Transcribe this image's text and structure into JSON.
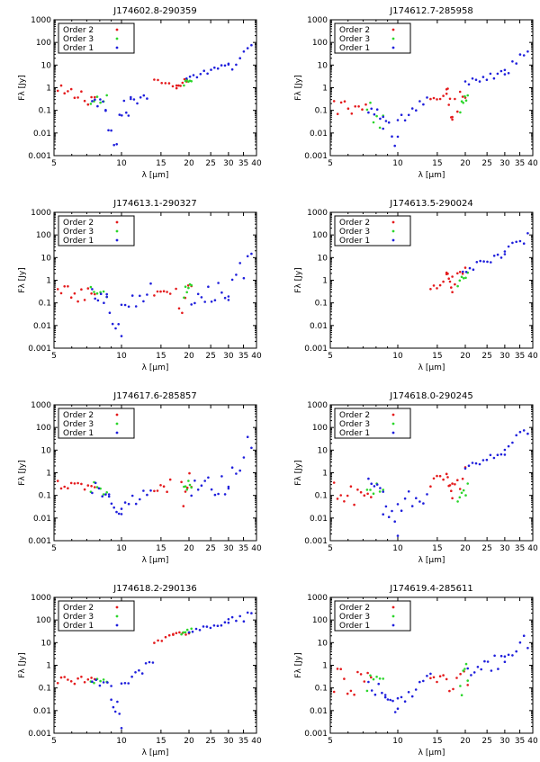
{
  "chart_data": [
    {
      "type": "scatter",
      "title": "J174602.8-290359",
      "xlabel": "λ [μm]",
      "ylabel": "Fλ [Jy]",
      "xscale": "log",
      "yscale": "log",
      "xlim": [
        5,
        40
      ],
      "ylim": [
        0.001,
        1000
      ],
      "xticks": [
        5,
        10,
        15,
        20,
        25,
        30,
        35,
        40
      ],
      "yticks": [
        0.001,
        0.01,
        0.1,
        1,
        10,
        100,
        1000
      ],
      "ytick_labels": [
        "0.001",
        "0.01",
        "0.1",
        "1",
        "10",
        "100",
        "1000"
      ],
      "legend": "top-left",
      "series": [
        {
          "name": "Order 2",
          "color": "#e41a1c",
          "segments": [
            [
              5.2,
              7.6,
              0.6,
              0.35,
              0.35
            ],
            [
              14.0,
              17.6,
              2.3,
              1.0,
              0.1
            ],
            [
              17.6,
              19.5,
              1.0,
              2.0,
              0.15
            ]
          ]
        },
        {
          "name": "Order 3",
          "color": "#2bd62b",
          "segments": [
            [
              7.3,
              8.6,
              0.35,
              0.25,
              0.3
            ],
            [
              19.0,
              20.5,
              1.6,
              2.4,
              0.15
            ]
          ]
        },
        {
          "name": "Order 1",
          "color": "#1f1fdc",
          "segments": [
            [
              7.4,
              8.5,
              0.4,
              0.15,
              0.3
            ],
            [
              8.5,
              9.8,
              0.15,
              0.002,
              0.7
            ],
            [
              9.8,
              11.0,
              0.05,
              0.2,
              0.5
            ],
            [
              11.0,
              13.0,
              0.25,
              0.45,
              0.2
            ],
            [
              19.5,
              30.0,
              2.5,
              10.0,
              0.1
            ],
            [
              30.0,
              38.0,
              10.0,
              40.0,
              0.3
            ]
          ]
        }
      ]
    },
    {
      "type": "scatter",
      "title": "J174612.7-285958",
      "xlabel": "λ [μm]",
      "ylabel": "Fλ [Jy]",
      "xscale": "log",
      "yscale": "log",
      "xlim": [
        5,
        40
      ],
      "ylim": [
        0.001,
        1000
      ],
      "xticks": [
        5,
        10,
        15,
        20,
        25,
        30,
        35,
        40
      ],
      "yticks": [
        0.001,
        0.01,
        0.1,
        1,
        10,
        100,
        1000
      ],
      "ytick_labels": [
        "0.001",
        "0.01",
        "0.1",
        "1",
        "10",
        "100",
        "1000"
      ],
      "legend": "top-left",
      "series": [
        {
          "name": "Order 2",
          "color": "#e41a1c",
          "segments": [
            [
              5.2,
              7.2,
              0.15,
              0.05,
              0.6
            ],
            [
              14.0,
              16.5,
              0.3,
              0.5,
              0.15
            ],
            [
              16.5,
              17.5,
              0.5,
              0.05,
              0.6
            ],
            [
              17.5,
              20.0,
              0.1,
              0.8,
              0.5
            ]
          ]
        },
        {
          "name": "Order 3",
          "color": "#2bd62b",
          "segments": [
            [
              7.3,
              8.6,
              0.1,
              0.03,
              0.5
            ],
            [
              19.0,
              20.5,
              0.15,
              0.6,
              0.4
            ]
          ]
        },
        {
          "name": "Order 1",
          "color": "#1f1fdc",
          "segments": [
            [
              7.4,
              8.6,
              0.1,
              0.03,
              0.5
            ],
            [
              8.6,
              10.0,
              0.02,
              0.002,
              0.6
            ],
            [
              10.0,
              13.5,
              0.02,
              0.2,
              0.5
            ],
            [
              20.0,
              30.0,
              1.5,
              5.0,
              0.15
            ],
            [
              30.0,
              38.0,
              5.0,
              30.0,
              0.3
            ]
          ]
        }
      ]
    },
    {
      "type": "scatter",
      "title": "J174613.1-290327",
      "xlabel": "λ [μm]",
      "ylabel": "Fλ [Jy]",
      "xscale": "log",
      "yscale": "log",
      "xlim": [
        5,
        40
      ],
      "ylim": [
        0.001,
        1000
      ],
      "xticks": [
        5,
        10,
        15,
        20,
        25,
        30,
        35,
        40
      ],
      "yticks": [
        0.001,
        0.01,
        0.1,
        1,
        10,
        100,
        1000
      ],
      "ytick_labels": [
        "0.001",
        "0.01",
        "0.1",
        "1",
        "10",
        "100",
        "1000"
      ],
      "legend": "top-left",
      "series": [
        {
          "name": "Order 2",
          "color": "#e41a1c",
          "segments": [
            [
              5.2,
              7.6,
              0.25,
              0.2,
              0.4
            ],
            [
              14.0,
              16.5,
              0.3,
              0.3,
              0.15
            ],
            [
              17.5,
              20.5,
              0.1,
              0.3,
              0.7
            ]
          ]
        },
        {
          "name": "Order 3",
          "color": "#2bd62b",
          "segments": [
            [
              7.3,
              8.6,
              0.35,
              0.2,
              0.3
            ],
            [
              19.0,
              20.5,
              0.2,
              0.3,
              0.4
            ]
          ]
        },
        {
          "name": "Order 1",
          "color": "#1f1fdc",
          "segments": [
            [
              7.4,
              8.6,
              0.35,
              0.15,
              0.3
            ],
            [
              8.6,
              10.0,
              0.1,
              0.005,
              0.5
            ],
            [
              10.0,
              13.5,
              0.05,
              0.3,
              0.4
            ],
            [
              20.5,
              30.0,
              0.2,
              0.4,
              0.5
            ],
            [
              30.0,
              38.0,
              0.5,
              10.0,
              0.5
            ]
          ]
        }
      ]
    },
    {
      "type": "scatter",
      "title": "J174613.5-290024",
      "xlabel": "λ [μm]",
      "ylabel": "Fλ [Jy]",
      "xscale": "log",
      "yscale": "log",
      "xlim": [
        5,
        40
      ],
      "ylim": [
        0.001,
        1000
      ],
      "xticks": [
        5,
        10,
        15,
        20,
        25,
        30,
        35,
        40
      ],
      "yticks": [
        0.001,
        0.01,
        0.1,
        1,
        10,
        100,
        1000
      ],
      "ytick_labels": [
        "0.001",
        "0.01",
        "0.1",
        "1",
        "10",
        "100",
        "1000"
      ],
      "legend": "top-left",
      "series": [
        {
          "name": "Order 2",
          "color": "#e41a1c",
          "segments": [
            [
              14.0,
              16.5,
              0.3,
              1.8,
              0.2
            ],
            [
              16.5,
              17.5,
              1.8,
              0.25,
              0.3
            ],
            [
              17.5,
              20.0,
              1.0,
              3.0,
              0.3
            ]
          ]
        },
        {
          "name": "Order 3",
          "color": "#2bd62b",
          "segments": [
            [
              18.5,
              20.5,
              0.6,
              2.0,
              0.3
            ]
          ]
        },
        {
          "name": "Order 1",
          "color": "#1f1fdc",
          "segments": [
            [
              19.5,
              30.0,
              2.5,
              15.0,
              0.15
            ],
            [
              30.0,
              38.0,
              15.0,
              80.0,
              0.3
            ]
          ]
        }
      ]
    },
    {
      "type": "scatter",
      "title": "J174617.6-285857",
      "xlabel": "λ [μm]",
      "ylabel": "Fλ [Jy]",
      "xscale": "log",
      "yscale": "log",
      "xlim": [
        5,
        40
      ],
      "ylim": [
        0.001,
        1000
      ],
      "xticks": [
        5,
        10,
        15,
        20,
        25,
        30,
        35,
        40
      ],
      "yticks": [
        0.001,
        0.01,
        0.1,
        1,
        10,
        100,
        1000
      ],
      "ytick_labels": [
        "0.001",
        "0.01",
        "0.1",
        "1",
        "10",
        "100",
        "1000"
      ],
      "legend": "top-left",
      "series": [
        {
          "name": "Order 2",
          "color": "#e41a1c",
          "segments": [
            [
              5.2,
              7.6,
              0.3,
              0.2,
              0.2
            ],
            [
              14.0,
              16.5,
              0.15,
              0.25,
              0.3
            ],
            [
              18.5,
              20.5,
              0.1,
              0.3,
              0.7
            ]
          ]
        },
        {
          "name": "Order 3",
          "color": "#2bd62b",
          "segments": [
            [
              7.3,
              8.6,
              0.25,
              0.15,
              0.3
            ],
            [
              19.0,
              20.5,
              0.1,
              0.3,
              0.5
            ]
          ]
        },
        {
          "name": "Order 1",
          "color": "#1f1fdc",
          "segments": [
            [
              7.4,
              8.8,
              0.25,
              0.1,
              0.3
            ],
            [
              8.8,
              10.0,
              0.08,
              0.02,
              0.3
            ],
            [
              10.0,
              13.5,
              0.03,
              0.2,
              0.3
            ],
            [
              20.5,
              30.0,
              0.2,
              0.3,
              0.6
            ],
            [
              30.0,
              38.0,
              0.5,
              20.0,
              0.6
            ]
          ]
        }
      ]
    },
    {
      "type": "scatter",
      "title": "J174618.0-290245",
      "xlabel": "λ [μm]",
      "ylabel": "Fλ [Jy]",
      "xscale": "log",
      "yscale": "log",
      "xlim": [
        5,
        40
      ],
      "ylim": [
        0.001,
        1000
      ],
      "xticks": [
        5,
        10,
        15,
        20,
        25,
        30,
        35,
        40
      ],
      "yticks": [
        0.001,
        0.01,
        0.1,
        1,
        10,
        100,
        1000
      ],
      "ytick_labels": [
        "0.001",
        "0.01",
        "0.1",
        "1",
        "10",
        "100",
        "1000"
      ],
      "legend": "top-left",
      "series": [
        {
          "name": "Order 2",
          "color": "#e41a1c",
          "segments": [
            [
              5.2,
              7.6,
              0.1,
              0.05,
              0.6
            ],
            [
              14.0,
              16.5,
              0.3,
              1.0,
              0.2
            ],
            [
              16.5,
              17.5,
              1.0,
              0.1,
              0.3
            ],
            [
              17.5,
              20.0,
              0.2,
              0.8,
              0.4
            ]
          ]
        },
        {
          "name": "Order 3",
          "color": "#2bd62b",
          "segments": [
            [
              7.3,
              8.6,
              0.3,
              0.15,
              0.3
            ],
            [
              18.5,
              20.5,
              0.1,
              0.3,
              0.5
            ]
          ]
        },
        {
          "name": "Order 1",
          "color": "#1f1fdc",
          "segments": [
            [
              7.4,
              8.6,
              0.3,
              0.1,
              0.3
            ],
            [
              8.6,
              10.0,
              0.03,
              0.005,
              0.5
            ],
            [
              10.0,
              13.5,
              0.05,
              0.15,
              0.5
            ],
            [
              20.0,
              30.0,
              1.5,
              10.0,
              0.15
            ],
            [
              30.0,
              38.0,
              10.0,
              70.0,
              0.3
            ]
          ]
        }
      ]
    },
    {
      "type": "scatter",
      "title": "J174618.2-290136",
      "xlabel": "λ [μm]",
      "ylabel": "Fλ [Jy]",
      "xscale": "log",
      "yscale": "log",
      "xlim": [
        5,
        40
      ],
      "ylim": [
        0.001,
        1000
      ],
      "xticks": [
        5,
        10,
        15,
        20,
        25,
        30,
        35,
        40
      ],
      "yticks": [
        0.001,
        0.01,
        0.1,
        1,
        10,
        100,
        1000
      ],
      "ytick_labels": [
        "0.001",
        "0.01",
        "0.1",
        "1",
        "10",
        "100",
        "1000"
      ],
      "legend": "top-left",
      "series": [
        {
          "name": "Order 2",
          "color": "#e41a1c",
          "segments": [
            [
              5.2,
              7.6,
              0.25,
              0.2,
              0.2
            ],
            [
              14.0,
              17.0,
              12.0,
              20.0,
              0.1
            ],
            [
              17.0,
              20.0,
              20.0,
              30.0,
              0.1
            ]
          ]
        },
        {
          "name": "Order 3",
          "color": "#2bd62b",
          "segments": [
            [
              7.3,
              8.6,
              0.2,
              0.2,
              0.2
            ],
            [
              18.5,
              20.5,
              25.0,
              35.0,
              0.1
            ]
          ]
        },
        {
          "name": "Order 1",
          "color": "#1f1fdc",
          "segments": [
            [
              7.4,
              9.0,
              0.2,
              0.12,
              0.2
            ],
            [
              9.0,
              10.0,
              0.05,
              0.003,
              0.5
            ],
            [
              10.0,
              13.8,
              0.1,
              1.5,
              0.2
            ],
            [
              20.0,
              30.0,
              30.0,
              80.0,
              0.1
            ],
            [
              30.0,
              38.0,
              80.0,
              150.0,
              0.2
            ]
          ]
        }
      ]
    },
    {
      "type": "scatter",
      "title": "J174619.4-285611",
      "xlabel": "λ [μm]",
      "ylabel": "Fλ [Jy]",
      "xscale": "log",
      "yscale": "log",
      "xlim": [
        5,
        40
      ],
      "ylim": [
        0.001,
        1000
      ],
      "xticks": [
        5,
        10,
        15,
        20,
        25,
        30,
        35,
        40
      ],
      "yticks": [
        0.001,
        0.01,
        0.1,
        1,
        10,
        100,
        1000
      ],
      "ytick_labels": [
        "0.001",
        "0.01",
        "0.1",
        "1",
        "10",
        "100",
        "1000"
      ],
      "legend": "top-left",
      "series": [
        {
          "name": "Order 2",
          "color": "#e41a1c",
          "segments": [
            [
              5.2,
              7.6,
              0.2,
              0.15,
              0.6
            ],
            [
              14.0,
              16.5,
              0.2,
              0.35,
              0.2
            ],
            [
              17.0,
              20.5,
              0.1,
              0.5,
              0.6
            ]
          ]
        },
        {
          "name": "Order 3",
          "color": "#2bd62b",
          "segments": [
            [
              7.3,
              8.6,
              0.15,
              0.12,
              0.4
            ],
            [
              19.0,
              20.5,
              0.1,
              0.5,
              0.5
            ]
          ]
        },
        {
          "name": "Order 1",
          "color": "#1f1fdc",
          "segments": [
            [
              7.4,
              8.8,
              0.15,
              0.05,
              0.3
            ],
            [
              8.8,
              10.0,
              0.03,
              0.008,
              0.4
            ],
            [
              10.0,
              14.0,
              0.02,
              0.2,
              0.4
            ],
            [
              20.5,
              30.0,
              0.5,
              1.5,
              0.4
            ],
            [
              30.0,
              38.0,
              1.0,
              15.0,
              0.5
            ]
          ]
        }
      ]
    }
  ]
}
